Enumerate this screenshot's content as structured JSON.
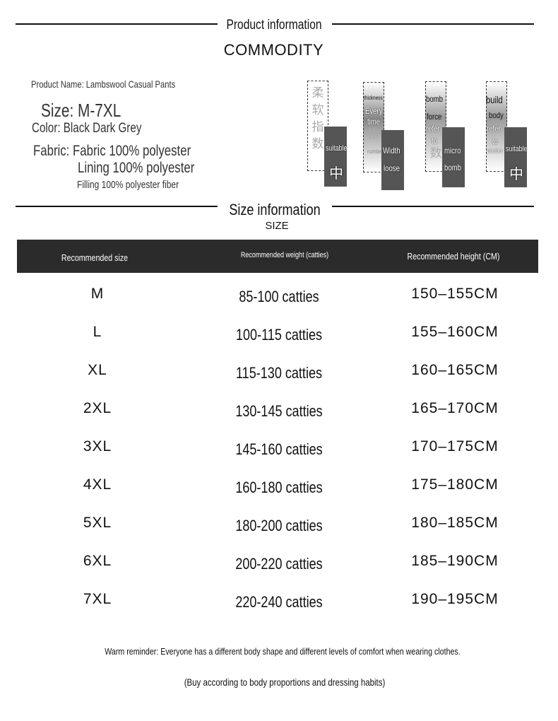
{
  "header": {
    "title": "Product information",
    "subtitle": "COMMODITY"
  },
  "product": {
    "name": "Product Name: Lambswool Casual Pants",
    "size": "Size: M-7XL",
    "color": "Color: Black Dark Grey",
    "fabric": "Fabric: Fabric 100% polyester",
    "lining": "Lining 100% polyester",
    "filling": "Filling 100% polyester fiber"
  },
  "indices": [
    {
      "label": "柔软指数",
      "words": [
        "柔",
        "软",
        "指",
        "数"
      ],
      "badge": "suitable",
      "value": "中"
    },
    {
      "label": "thickness",
      "words": [
        "Every",
        "time"
      ],
      "cjk": "指",
      "small": "number",
      "badge": "Width",
      "value": "loose"
    },
    {
      "words": [
        "bomb",
        "force",
        "refer",
        "to"
      ],
      "cjk": "数",
      "badge": "micro",
      "value": "bomb"
    },
    {
      "words": [
        "build",
        "body",
        "refer",
        "to"
      ],
      "small": "number",
      "badge": "suitable",
      "value": "中"
    }
  ],
  "size_section": {
    "title": "Size information",
    "subtitle": "SIZE"
  },
  "table": {
    "headers": [
      "Recommended size",
      "Recommended weight (catties)",
      "Recommended height (CM)"
    ],
    "rows": [
      [
        "M",
        "85-100 catties",
        "150–155CM"
      ],
      [
        "L",
        "100-115 catties",
        "155–160CM"
      ],
      [
        "XL",
        "115-130 catties",
        "160–165CM"
      ],
      [
        "2XL",
        "130-145 catties",
        "165–170CM"
      ],
      [
        "3XL",
        "145-160 catties",
        "170–175CM"
      ],
      [
        "4XL",
        "160-180 catties",
        "175–180CM"
      ],
      [
        "5XL",
        "180-200 catties",
        "180–185CM"
      ],
      [
        "6XL",
        "200-220 catties",
        "185–190CM"
      ],
      [
        "7XL",
        "220-240 catties",
        "190–195CM"
      ]
    ]
  },
  "footer": {
    "reminder": "Warm reminder: Everyone has a different body shape and different levels of comfort when wearing clothes.",
    "advice": "(Buy according to body proportions and dressing habits)"
  }
}
